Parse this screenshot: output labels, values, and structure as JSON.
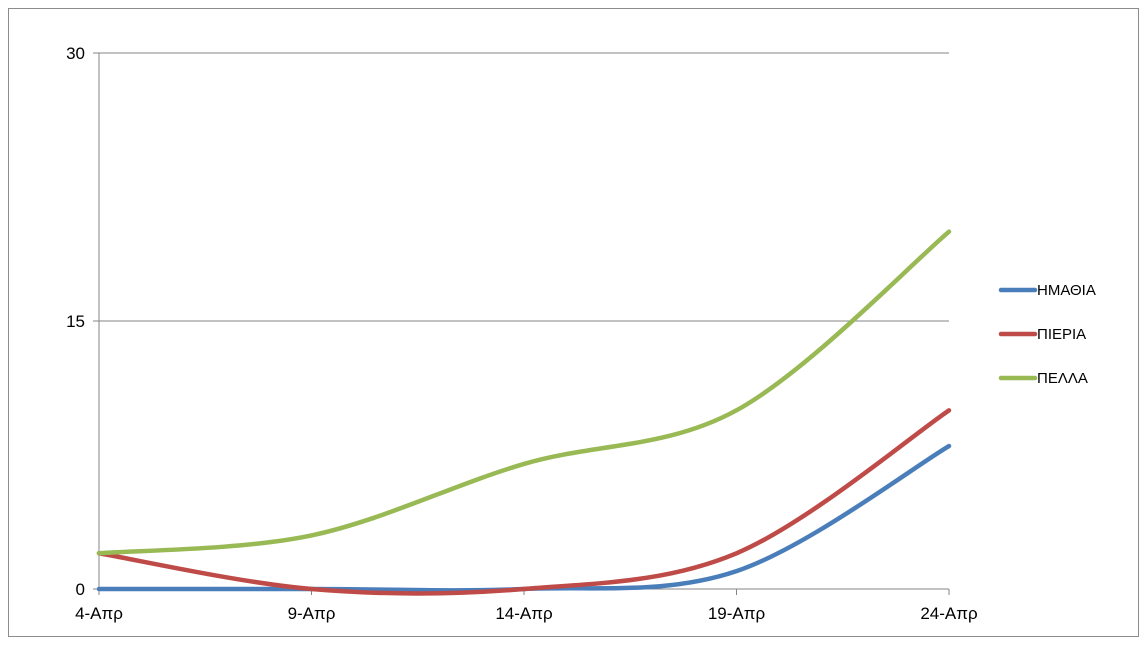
{
  "chart_data": {
    "type": "line",
    "categories": [
      "4-Απρ",
      "9-Απρ",
      "14-Απρ",
      "19-Απρ",
      "24-Απρ"
    ],
    "series": [
      {
        "name": "ΗΜΑΘΙΑ",
        "color": "#4a7ebb",
        "values": [
          0,
          0,
          0,
          1,
          8
        ]
      },
      {
        "name": "ΠΙΕΡΙΑ",
        "color": "#be4b48",
        "values": [
          2,
          0,
          0,
          2,
          10
        ]
      },
      {
        "name": "ΠΕΛΛΑ",
        "color": "#98b954",
        "values": [
          2,
          3,
          7,
          10,
          20
        ]
      }
    ],
    "y_ticks": [
      "0",
      "15",
      "30"
    ],
    "ylim": [
      0,
      30
    ],
    "grid": true,
    "legend": "right",
    "smooth": true
  }
}
